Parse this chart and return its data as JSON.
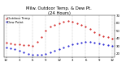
{
  "title": "Milw. Outdoor Temp. & Dew Pt.",
  "title2": "(24 Hours)",
  "legend_temp": "Outdoor Temp",
  "legend_dew": "Dew Point",
  "x_labels": [
    "12",
    "1",
    "2",
    "3",
    "4",
    "5",
    "6",
    "7",
    "8",
    "9",
    "10",
    "11",
    "12",
    "1",
    "2",
    "3",
    "4",
    "5",
    "6",
    "7",
    "8",
    "9",
    "10",
    "11",
    "12"
  ],
  "temp_y": [
    34,
    33,
    32,
    32,
    31,
    31,
    30,
    35,
    42,
    50,
    55,
    58,
    60,
    62,
    63,
    62,
    60,
    58,
    55,
    52,
    48,
    45,
    43,
    42,
    40
  ],
  "dew_y": [
    28,
    27,
    26,
    24,
    22,
    20,
    19,
    19,
    18,
    20,
    22,
    24,
    26,
    28,
    30,
    32,
    33,
    34,
    35,
    35,
    34,
    33,
    32,
    31,
    30
  ],
  "temp_color": "#cc0000",
  "dew_color": "#0000cc",
  "grid_color": "#888888",
  "bg_color": "#ffffff",
  "ylim_min": 15,
  "ylim_max": 70,
  "yticks": [
    20,
    30,
    40,
    50,
    60,
    70
  ],
  "ytick_labels": [
    "20",
    "30",
    "40",
    "50",
    "60",
    "70"
  ],
  "title_fontsize": 3.8,
  "tick_fontsize": 2.8,
  "legend_fontsize": 2.8,
  "marker_size": 1.0,
  "grid_x_positions": [
    0,
    3,
    6,
    9,
    12,
    15,
    18,
    21,
    24
  ]
}
